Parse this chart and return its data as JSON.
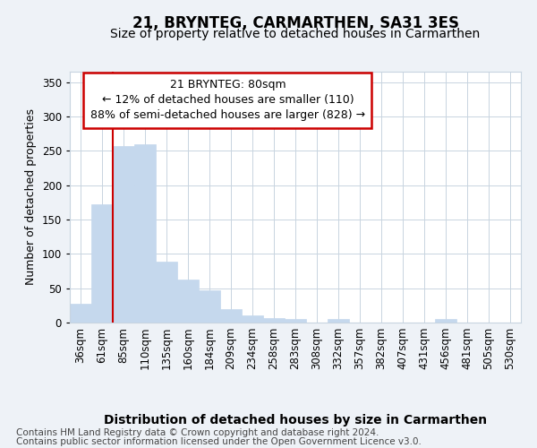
{
  "title": "21, BRYNTEG, CARMARTHEN, SA31 3ES",
  "subtitle": "Size of property relative to detached houses in Carmarthen",
  "xlabel": "Distribution of detached houses by size in Carmarthen",
  "ylabel": "Number of detached properties",
  "categories": [
    "36sqm",
    "61sqm",
    "85sqm",
    "110sqm",
    "135sqm",
    "160sqm",
    "184sqm",
    "209sqm",
    "234sqm",
    "258sqm",
    "283sqm",
    "308sqm",
    "332sqm",
    "357sqm",
    "382sqm",
    "407sqm",
    "431sqm",
    "456sqm",
    "481sqm",
    "505sqm",
    "530sqm"
  ],
  "values": [
    28,
    172,
    257,
    260,
    89,
    63,
    47,
    20,
    11,
    7,
    5,
    0,
    5,
    0,
    0,
    0,
    0,
    5,
    0,
    0,
    0
  ],
  "bar_color": "#c5d8ed",
  "bar_edge_color": "#c5d8ed",
  "bar_edge_width": 0.5,
  "red_line_x": 2.0,
  "red_line_color": "#cc0000",
  "annotation_text": "21 BRYNTEG: 80sqm\n← 12% of detached houses are smaller (110)\n88% of semi-detached houses are larger (828) →",
  "annotation_box_color": "#ffffff",
  "annotation_box_edge": "#cc0000",
  "annotation_fontsize": 9,
  "ylim": [
    0,
    365
  ],
  "yticks": [
    0,
    50,
    100,
    150,
    200,
    250,
    300,
    350
  ],
  "title_fontsize": 12,
  "subtitle_fontsize": 10,
  "xlabel_fontsize": 10,
  "ylabel_fontsize": 9,
  "tick_fontsize": 8.5,
  "footer_line1": "Contains HM Land Registry data © Crown copyright and database right 2024.",
  "footer_line2": "Contains public sector information licensed under the Open Government Licence v3.0.",
  "footer_fontsize": 7.5,
  "bg_color": "#eef2f7",
  "plot_bg_color": "#ffffff",
  "grid_color": "#c8d4e0"
}
